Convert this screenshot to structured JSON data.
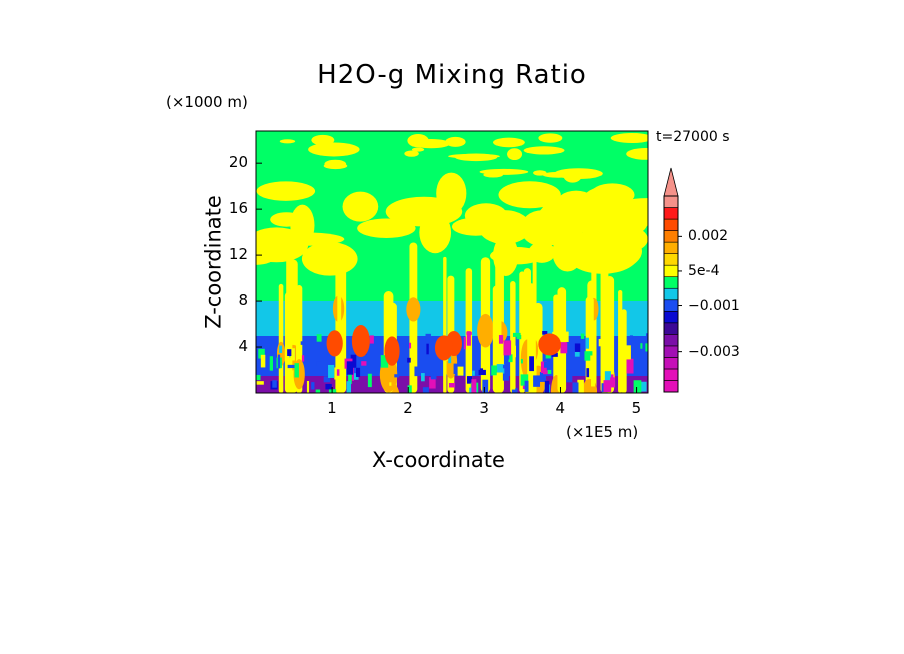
{
  "chart_data": {
    "type": "heatmap",
    "title": "H2O-g Mixing Ratio",
    "xlabel": "X-coordinate",
    "ylabel": "Z-coordinate",
    "x_unit_label": "(×1E5 m)",
    "z_unit_label": "(×1000 m)",
    "time_label": "t=27000 s",
    "xlim": [
      0,
      5.15
    ],
    "ylim": [
      0,
      22.8
    ],
    "x_ticks": [
      "1",
      "2",
      "3",
      "4",
      "5"
    ],
    "x_tick_values": [
      1,
      2,
      3,
      4,
      5
    ],
    "y_ticks": [
      "4",
      "8",
      "12",
      "16",
      "20"
    ],
    "y_tick_values": [
      4,
      8,
      12,
      16,
      20
    ],
    "colorbar": {
      "labels": [
        "0.002",
        "5e-4",
        "−0.001",
        "−0.003"
      ],
      "label_levels": [
        0.002,
        0.0005,
        -0.001,
        -0.003
      ],
      "levels": [
        -0.0045,
        -0.004,
        -0.0035,
        -0.003,
        -0.0025,
        -0.002,
        -0.0015,
        -0.001,
        -0.0005,
        0,
        0.0005,
        0.001,
        0.0015,
        0.002,
        0.0025,
        0.003,
        0.0035
      ],
      "colors": [
        "#e30fb8",
        "#e30fb8",
        "#c60fb8",
        "#a20fb4",
        "#7b0ea8",
        "#3c0896",
        "#0a0ad2",
        "#1a4df0",
        "#12c7e8",
        "#00ff66",
        "#ffff00",
        "#ffd800",
        "#ffae00",
        "#ff7f00",
        "#ff4b00",
        "#ff1a1a",
        "#f5928a"
      ],
      "extend": "max"
    }
  }
}
